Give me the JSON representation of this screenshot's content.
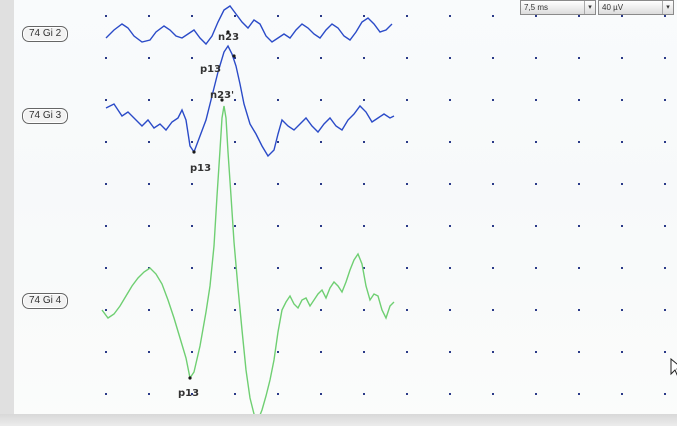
{
  "controls": {
    "sweep": "7,5 ms",
    "sensitivity": "40 µV"
  },
  "channels": [
    {
      "label": "74 Gi 2",
      "color": "#2b4bc8"
    },
    {
      "label": "74 Gi 3",
      "color": "#2b4bc8"
    },
    {
      "label": "74 Gi 4",
      "color": "#6fcf72"
    }
  ],
  "peaks": {
    "ch2_n23": "n23",
    "ch2_p13": "p13",
    "ch3_n23": "n23'",
    "ch3_p13": "p13",
    "ch4_p13": "p13"
  },
  "icons": {
    "cursor": "mouse-pointer-icon"
  }
}
